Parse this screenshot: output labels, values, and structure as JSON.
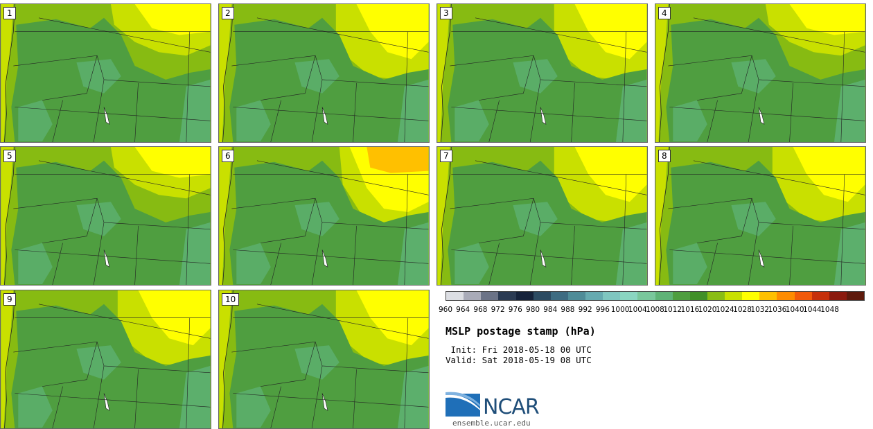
{
  "panels": [
    {
      "number": "1",
      "variant": "a"
    },
    {
      "number": "2",
      "variant": "b"
    },
    {
      "number": "3",
      "variant": "b"
    },
    {
      "number": "4",
      "variant": "a"
    },
    {
      "number": "5",
      "variant": "a"
    },
    {
      "number": "6",
      "variant": "c"
    },
    {
      "number": "7",
      "variant": "b"
    },
    {
      "number": "8",
      "variant": "b"
    },
    {
      "number": "9",
      "variant": "b"
    },
    {
      "number": "10",
      "variant": "b"
    }
  ],
  "colorbar": {
    "ticks": [
      "960",
      "964",
      "968",
      "972",
      "976",
      "980",
      "984",
      "988",
      "992",
      "996",
      "1000",
      "1004",
      "1008",
      "1012",
      "1016",
      "1020",
      "1024",
      "1028",
      "1032",
      "1036",
      "1040",
      "1044",
      "1048"
    ],
    "colors": [
      "#dcdee3",
      "#a9abb8",
      "#6b7387",
      "#2a3a52",
      "#15223a",
      "#2c4b62",
      "#3e6c82",
      "#4f8c98",
      "#66aab0",
      "#7fc6c0",
      "#8ad6c1",
      "#79c79c",
      "#5fb377",
      "#4f9e40",
      "#419028",
      "#8abd14",
      "#c9e000",
      "#ffff00",
      "#ffc000",
      "#ff8c00",
      "#f25a0a",
      "#c6300b",
      "#8b1a0d",
      "#5e1a0c"
    ]
  },
  "title": "MSLP postage stamp (hPa)",
  "init_line": " Init: Fri 2018-05-18 00 UTC",
  "valid_line": "Valid: Sat 2018-05-19 08 UTC",
  "logo_text": "NCAR",
  "url": "ensemble.ucar.edu",
  "map_colors": {
    "c1008": "#5fb377",
    "c1012": "#4f9e40",
    "c1016": "#87bb12",
    "c1020": "#c9e000",
    "c1024": "#ffff00",
    "c1028": "#ffc000",
    "water": "#ffffff",
    "border": "#222222"
  }
}
